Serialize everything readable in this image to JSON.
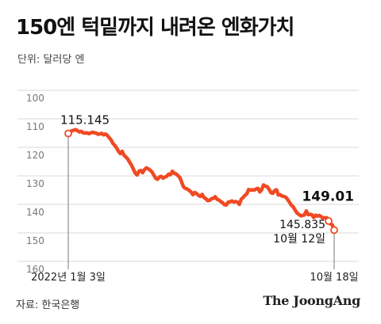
{
  "header": {
    "title": "150엔 턱밑까지 내려온 엔화가치",
    "unit": "단위: 달러당 엔"
  },
  "footer": {
    "source": "자료: 한국은행",
    "brand": "The JoongAng"
  },
  "colors": {
    "line": "#f04a23",
    "axis": "#777777",
    "grid": "#d9d9d9",
    "text": "#111111"
  },
  "chart_data": {
    "type": "line",
    "title": "150엔 턱밑까지 내려온 엔화가치",
    "ylabel": "단위: 달러당 엔",
    "ylim": [
      160,
      100
    ],
    "y_inverted": true,
    "yticks": [
      100,
      110,
      120,
      130,
      140,
      150,
      160
    ],
    "xticks": [
      "2022년 1월 3일",
      "10월 18일"
    ],
    "annotations": [
      {
        "label": "115.145",
        "value": 115.145
      },
      {
        "label": "149.01",
        "value": 149.01
      },
      {
        "label": "145.835",
        "sub": "10월 12일",
        "value": 145.835
      }
    ],
    "series": [
      {
        "values": [
          115.1,
          114.6,
          114.2,
          114.0,
          113.8,
          114.2,
          114.6,
          114.4,
          114.9,
          115.0,
          114.9,
          115.2,
          115.0,
          114.7,
          114.9,
          115.0,
          115.4,
          115.3,
          115.1,
          115.6,
          115.3,
          115.8,
          116.6,
          117.4,
          118.6,
          119.3,
          120.2,
          121.4,
          122.2,
          121.4,
          122.8,
          123.4,
          124.1,
          125.2,
          126.3,
          127.6,
          129.0,
          129.7,
          128.4,
          128.1,
          128.9,
          127.8,
          127.2,
          127.5,
          128.0,
          128.6,
          129.7,
          130.8,
          131.2,
          130.4,
          130.2,
          130.8,
          130.4,
          130.1,
          129.4,
          129.6,
          128.4,
          129.1,
          129.3,
          129.9,
          130.6,
          132.2,
          133.9,
          134.4,
          134.6,
          135.1,
          135.6,
          136.6,
          135.8,
          136.2,
          136.8,
          137.2,
          136.5,
          137.6,
          138.0,
          138.7,
          138.6,
          138.0,
          137.9,
          137.3,
          138.2,
          138.5,
          139.0,
          139.4,
          140.1,
          140.2,
          139.2,
          139.1,
          138.8,
          139.2,
          139.0,
          139.2,
          140.0,
          138.2,
          137.6,
          136.8,
          136.3,
          134.8,
          135.0,
          134.9,
          135.0,
          134.6,
          134.4,
          135.6,
          134.9,
          133.2,
          133.6,
          133.8,
          134.7,
          135.9,
          136.1,
          135.2,
          134.9,
          136.7,
          136.6,
          137.1,
          137.2,
          137.5,
          138.3,
          139.3,
          140.3,
          140.9,
          142.0,
          143.0,
          143.5,
          144.0,
          143.9,
          143.7,
          142.3,
          143.6,
          143.5,
          143.6,
          144.6,
          143.8,
          144.1,
          143.9,
          144.3,
          144.8,
          144.7,
          144.7,
          145.8,
          146.8,
          147.2,
          149.0
        ]
      }
    ]
  }
}
